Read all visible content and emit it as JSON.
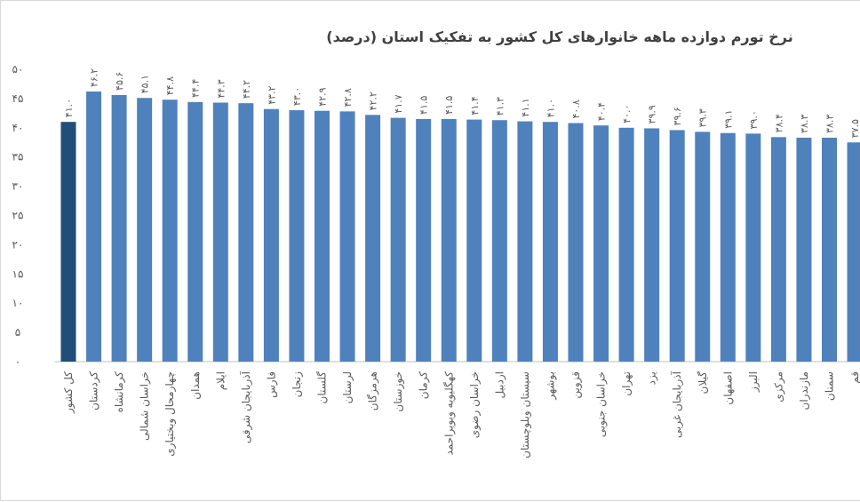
{
  "chart_data": {
    "type": "bar",
    "title": "نرخ تورم دوازده ماهه خانوارهای کل کشور به تفکیک استان (درصد)",
    "categories": [
      "کل کشور",
      "کردستان",
      "کرمانشاه",
      "خراسان شمالی",
      "چهارمحال وبختیاری",
      "همدان",
      "ایلام",
      "آذربایجان شرقی",
      "فارس",
      "زنجان",
      "گلستان",
      "لرستان",
      "هرمزگان",
      "خوزستان",
      "کرمان",
      "کهگلیویه وبویراحمد",
      "خراسان رضوی",
      "اردبیل",
      "سیستان وبلوچستان",
      "بوشهر",
      "قزوین",
      "خراسان جنوبی",
      "تهران",
      "یزد",
      "آذربایجان غربی",
      "گیلان",
      "اصفهان",
      "البرز",
      "مرکزی",
      "مازندران",
      "سمنان",
      "قم"
    ],
    "values": [
      41.0,
      46.2,
      45.6,
      45.1,
      44.8,
      44.4,
      44.3,
      44.2,
      43.2,
      43.0,
      42.9,
      42.8,
      42.2,
      41.7,
      41.5,
      41.5,
      41.4,
      41.3,
      41.1,
      41.0,
      40.8,
      40.4,
      40.0,
      39.9,
      39.6,
      39.3,
      39.1,
      39.0,
      38.4,
      38.3,
      38.3,
      37.5
    ],
    "value_labels": [
      "۴۱.۰",
      "۴۶.۲",
      "۴۵.۶",
      "۴۵.۱",
      "۴۴.۸",
      "۴۴.۴",
      "۴۴.۳",
      "۴۴.۲",
      "۴۳.۲",
      "۴۳.۰",
      "۴۲.۹",
      "۴۲.۸",
      "۴۲.۲",
      "۴۱.۷",
      "۴۱.۵",
      "۴۱.۵",
      "۴۱.۴",
      "۴۱.۳",
      "۴۱.۱",
      "۴۱.۰",
      "۴۰.۸",
      "۴۰.۴",
      "۴۰.۰",
      "۳۹.۹",
      "۳۹.۶",
      "۳۹.۳",
      "۳۹.۱",
      "۳۹.۰",
      "۳۸.۴",
      "۳۸.۳",
      "۳۸.۳",
      "۳۷.۵"
    ],
    "colors": [
      "#1f4e79",
      "#4f81bd",
      "#4f81bd",
      "#4f81bd",
      "#4f81bd",
      "#4f81bd",
      "#4f81bd",
      "#4f81bd",
      "#4f81bd",
      "#4f81bd",
      "#4f81bd",
      "#4f81bd",
      "#4f81bd",
      "#4f81bd",
      "#4f81bd",
      "#4f81bd",
      "#4f81bd",
      "#4f81bd",
      "#4f81bd",
      "#4f81bd",
      "#4f81bd",
      "#4f81bd",
      "#4f81bd",
      "#4f81bd",
      "#4f81bd",
      "#4f81bd",
      "#4f81bd",
      "#4f81bd",
      "#4f81bd",
      "#4f81bd",
      "#4f81bd",
      "#4f81bd"
    ],
    "ylim": [
      0,
      50
    ],
    "yticks": [
      {
        "value": 0,
        "label": "۰"
      },
      {
        "value": 5,
        "label": "۵"
      },
      {
        "value": 10,
        "label": "۱۰"
      },
      {
        "value": 15,
        "label": "۱۵"
      },
      {
        "value": 20,
        "label": "۲۰"
      },
      {
        "value": 25,
        "label": "۲۵"
      },
      {
        "value": 30,
        "label": "۳۰"
      },
      {
        "value": 35,
        "label": "۳۵"
      },
      {
        "value": 40,
        "label": "۴۰"
      },
      {
        "value": 45,
        "label": "۴۵"
      },
      {
        "value": 50,
        "label": "۵۰"
      }
    ],
    "grid": false
  }
}
